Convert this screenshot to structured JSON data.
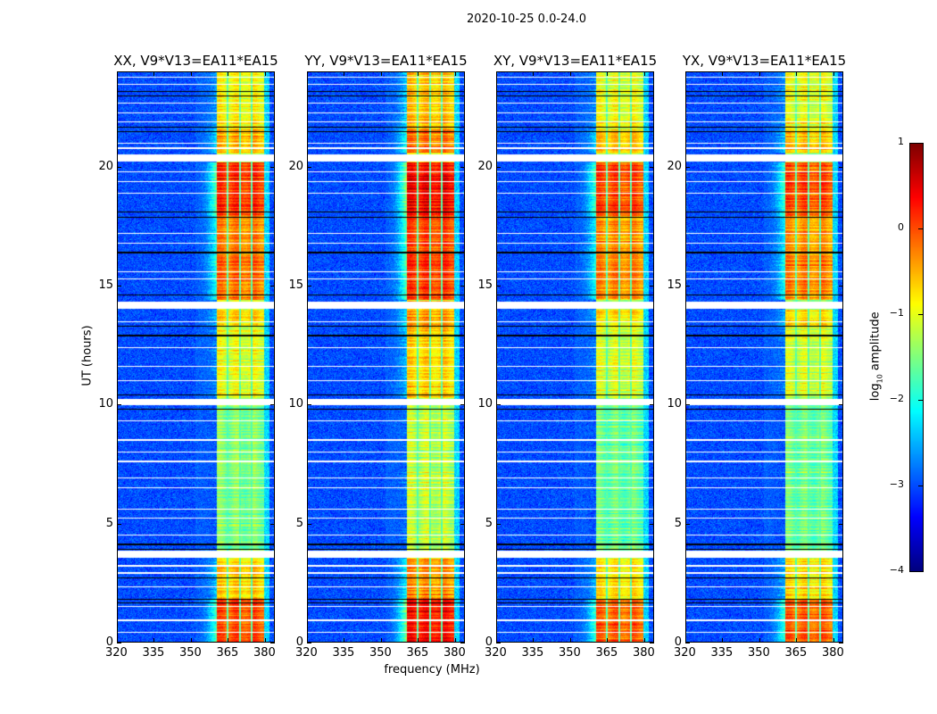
{
  "chart_data": {
    "type": "heatmap",
    "title": "2020-10-25 0.0-24.0",
    "xlabel": "frequency (MHz)",
    "ylabel": "UT (hours)",
    "x_range": [
      320,
      384
    ],
    "y_range": [
      0,
      24
    ],
    "xticks": [
      320,
      335,
      350,
      365,
      380
    ],
    "yticks": [
      0,
      5,
      10,
      15,
      20
    ],
    "panels": [
      {
        "title": "XX, V9*V13=EA11*EA15",
        "level_offset": 0.0
      },
      {
        "title": "YY, V9*V13=EA11*EA15",
        "level_offset": 0.3
      },
      {
        "title": "XY, V9*V13=EA11*EA15",
        "level_offset": -0.1
      },
      {
        "title": "YX, V9*V13=EA11*EA15",
        "level_offset": -0.1
      }
    ],
    "colorbar": {
      "label_main": "log",
      "label_sub": "10",
      "label_rest": " amplitude",
      "range": [
        -4,
        1
      ],
      "ticks": [
        1,
        0,
        -1,
        -2,
        -3,
        -4
      ],
      "colormap": "jet"
    },
    "background_level": -3.0,
    "band_mhz": [
      360.5,
      380
    ],
    "channel_gaps_mhz": [
      365,
      370,
      375
    ],
    "band_levels": [
      {
        "t0": 0.0,
        "t1": 1.8,
        "level": 0.0
      },
      {
        "t0": 1.8,
        "t1": 3.5,
        "level": -0.7
      },
      {
        "t0": 3.9,
        "t1": 10.0,
        "level": -1.5
      },
      {
        "t0": 10.3,
        "t1": 13.3,
        "level": -1.0
      },
      {
        "t0": 13.3,
        "t1": 14.0,
        "level": -0.7
      },
      {
        "t0": 14.4,
        "t1": 16.3,
        "level": -0.2
      },
      {
        "t0": 16.3,
        "t1": 18.0,
        "level": -0.3
      },
      {
        "t0": 18.0,
        "t1": 20.2,
        "level": 0.1
      },
      {
        "t0": 20.6,
        "t1": 21.6,
        "level": -0.5
      },
      {
        "t0": 21.6,
        "t1": 24.0,
        "level": -0.9
      }
    ],
    "flagged_white_bands": [
      [
        20.25,
        20.55
      ],
      [
        14.05,
        14.35
      ],
      [
        9.95,
        10.25
      ],
      [
        3.55,
        3.85
      ]
    ],
    "flagged_white_hours": [
      23.8,
      23.5,
      22.7,
      22.3,
      21.9,
      21.0,
      20.8,
      19.8,
      19.4,
      18.9,
      17.2,
      16.8,
      15.6,
      15.3,
      13.5,
      12.4,
      11.6,
      11.0,
      9.3,
      8.5,
      8.0,
      7.6,
      6.9,
      6.5,
      5.6,
      5.2,
      4.5,
      3.2,
      2.9,
      2.3,
      1.5,
      0.9,
      0.4
    ],
    "flagged_black_hours": [
      23.2,
      23.0,
      21.7,
      21.5,
      18.1,
      17.9,
      16.4,
      14.6,
      13.3,
      12.9,
      10.4,
      9.8,
      4.1,
      3.9,
      2.7,
      1.8,
      1.65
    ]
  }
}
